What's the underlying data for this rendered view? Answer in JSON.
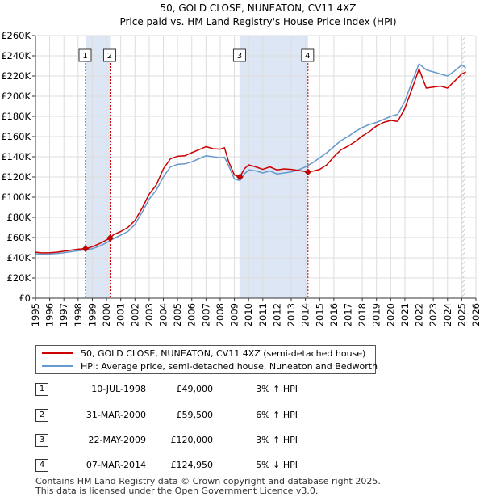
{
  "chart_data": {
    "type": "line",
    "title": "50, GOLD CLOSE, NUNEATON, CV11 4XZ",
    "subtitle": "Price paid vs. HM Land Registry's House Price Index (HPI)",
    "xlim": [
      1995,
      2026
    ],
    "ylim": [
      0,
      260000
    ],
    "y_ticks": [
      0,
      20000,
      40000,
      60000,
      80000,
      100000,
      120000,
      140000,
      160000,
      180000,
      200000,
      220000,
      240000,
      260000
    ],
    "y_tick_labels": [
      "£0",
      "£20K",
      "£40K",
      "£60K",
      "£80K",
      "£100K",
      "£120K",
      "£140K",
      "£160K",
      "£180K",
      "£200K",
      "£220K",
      "£240K",
      "£260K"
    ],
    "x_ticks": [
      1995,
      1996,
      1997,
      1998,
      1999,
      2000,
      2001,
      2002,
      2003,
      2004,
      2005,
      2006,
      2007,
      2008,
      2009,
      2010,
      2011,
      2012,
      2013,
      2014,
      2015,
      2016,
      2017,
      2018,
      2019,
      2020,
      2021,
      2022,
      2023,
      2024,
      2025,
      2026
    ],
    "x_tick_labels": [
      "1995",
      "1996",
      "1997",
      "1998",
      "1999",
      "2000",
      "2001",
      "2002",
      "2003",
      "2004",
      "2005",
      "2006",
      "2007",
      "2008",
      "2009",
      "2010",
      "2011",
      "2012",
      "2013",
      "2014",
      "2015",
      "2016",
      "2017",
      "2018",
      "2019",
      "2020",
      "2021",
      "2022",
      "2023",
      "2024",
      "2025",
      "2026"
    ],
    "shaded_ranges": [
      [
        1998.52,
        2000.25
      ],
      [
        2009.39,
        2014.18
      ]
    ],
    "forecast_start": 2025.0,
    "grid": true,
    "series": [
      {
        "name": "50, GOLD CLOSE, NUNEATON, CV11 4XZ (semi-detached house)",
        "color": "#cc0000",
        "x": [
          1995.0,
          1995.5,
          1996.0,
          1996.5,
          1997.0,
          1997.5,
          1998.0,
          1998.52,
          1999.0,
          1999.5,
          2000.25,
          2000.5,
          2001.0,
          2001.5,
          2002.0,
          2002.5,
          2003.0,
          2003.5,
          2004.0,
          2004.5,
          2005.0,
          2005.5,
          2006.0,
          2006.5,
          2007.0,
          2007.5,
          2008.0,
          2008.3,
          2008.6,
          2009.0,
          2009.39,
          2009.7,
          2010.0,
          2010.5,
          2011.0,
          2011.5,
          2012.0,
          2012.5,
          2013.0,
          2013.5,
          2014.18,
          2014.6,
          2015.0,
          2015.5,
          2016.0,
          2016.5,
          2017.0,
          2017.5,
          2018.0,
          2018.5,
          2019.0,
          2019.5,
          2020.0,
          2020.5,
          2021.0,
          2021.5,
          2022.0,
          2022.5,
          2023.0,
          2023.5,
          2024.0,
          2024.5,
          2025.0,
          2025.3
        ],
        "values": [
          45500,
          44800,
          45000,
          45500,
          46500,
          47500,
          48500,
          49000,
          51000,
          54000,
          59500,
          63000,
          66000,
          70000,
          77000,
          89000,
          103000,
          112000,
          128000,
          138000,
          140500,
          141000,
          144000,
          147000,
          150000,
          148000,
          147500,
          149000,
          135000,
          122000,
          120000,
          128000,
          132000,
          130000,
          127500,
          130000,
          127000,
          128000,
          127500,
          126500,
          124950,
          126000,
          127500,
          132000,
          140000,
          147000,
          150500,
          155000,
          160500,
          165000,
          170500,
          174000,
          176000,
          175000,
          188000,
          207000,
          227000,
          208000,
          209000,
          210000,
          208000,
          215000,
          222000,
          224000
        ]
      },
      {
        "name": "HPI: Average price, semi-detached house, Nuneaton and Bedworth",
        "color": "#6699cc",
        "x": [
          1995.0,
          1995.5,
          1996.0,
          1996.5,
          1997.0,
          1997.5,
          1998.0,
          1998.5,
          1999.0,
          1999.5,
          2000.0,
          2000.5,
          2001.0,
          2001.5,
          2002.0,
          2002.5,
          2003.0,
          2003.5,
          2004.0,
          2004.5,
          2005.0,
          2005.5,
          2006.0,
          2006.5,
          2007.0,
          2007.5,
          2008.0,
          2008.3,
          2008.6,
          2009.0,
          2009.4,
          2009.7,
          2010.0,
          2010.5,
          2011.0,
          2011.5,
          2012.0,
          2012.5,
          2013.0,
          2013.5,
          2014.0,
          2014.5,
          2015.0,
          2015.5,
          2016.0,
          2016.5,
          2017.0,
          2017.5,
          2018.0,
          2018.5,
          2019.0,
          2019.5,
          2020.0,
          2020.5,
          2021.0,
          2021.5,
          2022.0,
          2022.5,
          2023.0,
          2023.5,
          2024.0,
          2024.5,
          2025.0,
          2025.3
        ],
        "values": [
          44000,
          43500,
          43800,
          44200,
          45000,
          46000,
          47000,
          47800,
          49000,
          51500,
          55000,
          59000,
          62500,
          66000,
          73000,
          85000,
          98000,
          107000,
          120000,
          130000,
          132500,
          133000,
          135000,
          138000,
          141000,
          140000,
          139000,
          139500,
          131000,
          118000,
          116500,
          123000,
          127000,
          126000,
          124000,
          126000,
          123000,
          124000,
          125000,
          127000,
          130000,
          134000,
          139000,
          144000,
          150000,
          156000,
          160000,
          165000,
          169000,
          172000,
          174000,
          177000,
          180000,
          182000,
          195000,
          214000,
          232000,
          226000,
          224000,
          222000,
          220000,
          225000,
          231000,
          228000
        ]
      }
    ],
    "markers": [
      {
        "label": "1",
        "x": 1998.52,
        "y": 49000
      },
      {
        "label": "2",
        "x": 2000.25,
        "y": 59500
      },
      {
        "label": "3",
        "x": 2009.39,
        "y": 120000
      },
      {
        "label": "4",
        "x": 2014.18,
        "y": 124950
      }
    ]
  },
  "legend": {
    "property_label": "50, GOLD CLOSE, NUNEATON, CV11 4XZ (semi-detached house)",
    "hpi_label": "HPI: Average price, semi-detached house, Nuneaton and Bedworth",
    "property_color": "#cc0000",
    "hpi_color": "#6699cc"
  },
  "transactions": [
    {
      "num": "1",
      "date": "10-JUL-1998",
      "price": "£49,000",
      "hpi": "3% ↑ HPI"
    },
    {
      "num": "2",
      "date": "31-MAR-2000",
      "price": "£59,500",
      "hpi": "6% ↑ HPI"
    },
    {
      "num": "3",
      "date": "22-MAY-2009",
      "price": "£120,000",
      "hpi": "3% ↑ HPI"
    },
    {
      "num": "4",
      "date": "07-MAR-2014",
      "price": "£124,950",
      "hpi": "5% ↓ HPI"
    }
  ],
  "footer": {
    "line1": "Contains HM Land Registry data © Crown copyright and database right 2025.",
    "line2": "This data is licensed under the Open Government Licence v3.0."
  }
}
